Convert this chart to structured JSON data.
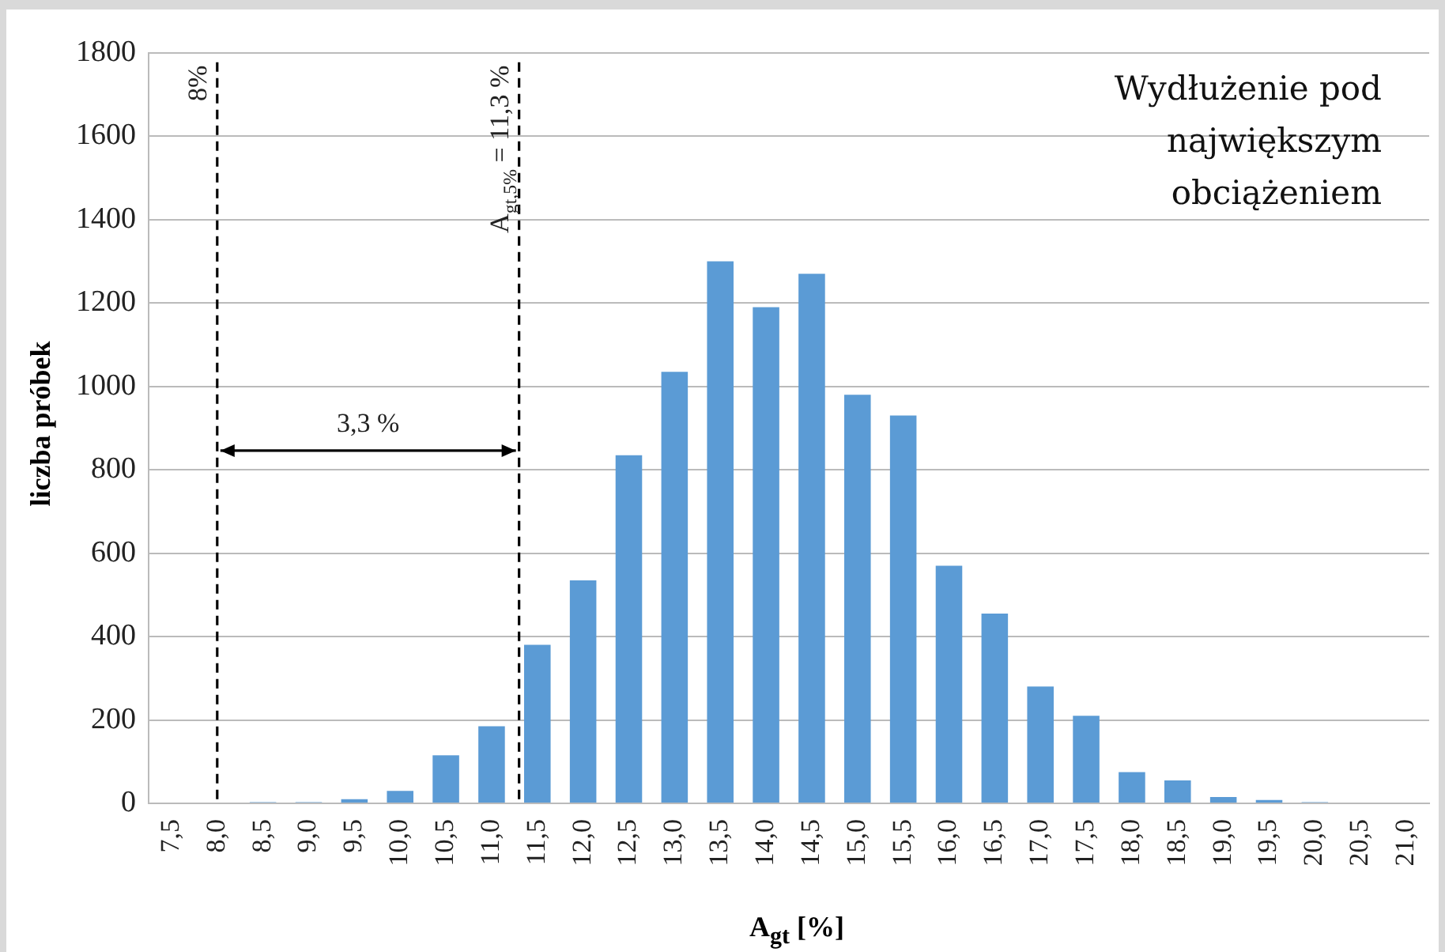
{
  "chart_data": {
    "type": "bar",
    "title": "Wydłużenie pod\nnajwiększym\nobciążeniem",
    "xlabel": "A$_{gt}$ [%]",
    "ylabel": "liczba próbek",
    "x": [
      7.5,
      8,
      8.5,
      9,
      9.5,
      10,
      10.5,
      11,
      11.5,
      12,
      12.5,
      13,
      13.5,
      14,
      14.5,
      15,
      15.5,
      16,
      16.5,
      17,
      17.5,
      18,
      18.5,
      19,
      19.5,
      20,
      20.5,
      21
    ],
    "values": [
      0,
      0,
      3,
      3,
      10,
      30,
      115,
      185,
      380,
      535,
      835,
      1035,
      1300,
      1190,
      1270,
      980,
      930,
      570,
      455,
      280,
      210,
      75,
      55,
      15,
      8,
      3,
      0,
      0
    ],
    "color": "#5b9bd5",
    "xlim": [
      7.25,
      21.25
    ],
    "xticks": [
      {
        "value": 7.5,
        "label": "7,5"
      },
      {
        "value": 8,
        "label": "8,0"
      },
      {
        "value": 8.5,
        "label": "8,5"
      },
      {
        "value": 9,
        "label": "9,0"
      },
      {
        "value": 9.5,
        "label": "9,5"
      },
      {
        "value": 10,
        "label": "10,0"
      },
      {
        "value": 10.5,
        "label": "10,5"
      },
      {
        "value": 11,
        "label": "11,0"
      },
      {
        "value": 11.5,
        "label": "11,5"
      },
      {
        "value": 12,
        "label": "12,0"
      },
      {
        "value": 12.5,
        "label": "12,5"
      },
      {
        "value": 13,
        "label": "13,0"
      },
      {
        "value": 13.5,
        "label": "13,5"
      },
      {
        "value": 14,
        "label": "14,0"
      },
      {
        "value": 14.5,
        "label": "14,5"
      },
      {
        "value": 15,
        "label": "15,0"
      },
      {
        "value": 15.5,
        "label": "15,5"
      },
      {
        "value": 16,
        "label": "16,0"
      },
      {
        "value": 16.5,
        "label": "16,5"
      },
      {
        "value": 17,
        "label": "17,0"
      },
      {
        "value": 17.5,
        "label": "17,5"
      },
      {
        "value": 18,
        "label": "18,0"
      },
      {
        "value": 18.5,
        "label": "18,5"
      },
      {
        "value": 19,
        "label": "19,0"
      },
      {
        "value": 19.5,
        "label": "19,5"
      },
      {
        "value": 20,
        "label": "20,0"
      },
      {
        "value": 20.5,
        "label": "20,5"
      },
      {
        "value": 21,
        "label": "21,0"
      }
    ],
    "ylim": [
      0,
      1800
    ],
    "yticks": [
      0,
      200,
      400,
      600,
      800,
      1000,
      1200,
      1400,
      1600,
      1800
    ],
    "grid": "y",
    "ref_lines": [
      {
        "axis": "x",
        "value": 8,
        "label": "8%",
        "color": "#000000",
        "line_style": "dashed"
      },
      {
        "axis": "x",
        "value": 11.3,
        "label": "A$_{gt,5%}$ = 11,3 %",
        "color": "#000000",
        "line_style": "dashed"
      }
    ],
    "annotations": [
      "3,3 %"
    ]
  }
}
